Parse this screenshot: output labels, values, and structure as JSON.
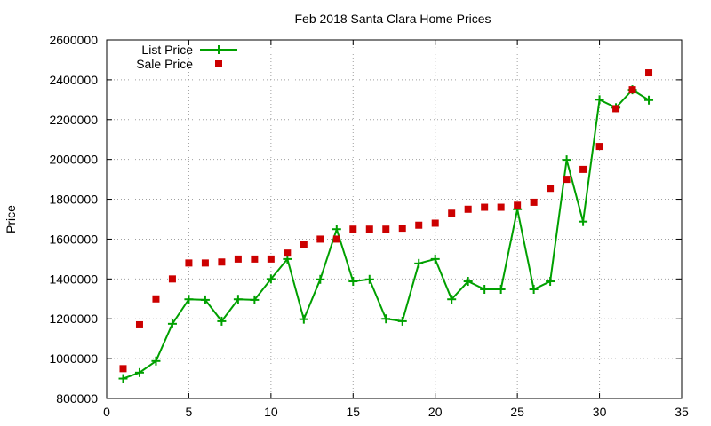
{
  "chart_data": {
    "type": "line",
    "title": "Feb 2018 Santa Clara Home Prices",
    "xlabel": "",
    "ylabel": "Price",
    "xlim": [
      0,
      35
    ],
    "ylim": [
      800000,
      2600000
    ],
    "xticks": [
      0,
      5,
      10,
      15,
      20,
      25,
      30,
      35
    ],
    "yticks": [
      800000,
      1000000,
      1200000,
      1400000,
      1600000,
      1800000,
      2000000,
      2200000,
      2400000,
      2600000
    ],
    "grid": true,
    "legend_position": "top-left",
    "x": [
      1,
      2,
      3,
      4,
      5,
      6,
      7,
      8,
      9,
      10,
      11,
      12,
      13,
      14,
      15,
      16,
      17,
      18,
      19,
      20,
      21,
      22,
      23,
      24,
      25,
      26,
      27,
      28,
      29,
      30,
      31,
      32,
      33
    ],
    "series": [
      {
        "name": "List Price",
        "style": "linespoints",
        "marker": "plus",
        "color": "#00a000",
        "values": [
          900000,
          930000,
          988000,
          1175000,
          1298000,
          1295000,
          1188000,
          1298000,
          1295000,
          1400000,
          1500000,
          1198000,
          1398000,
          1650000,
          1388000,
          1398000,
          1200000,
          1188000,
          1478000,
          1500000,
          1298000,
          1388000,
          1348000,
          1348000,
          1750000,
          1348000,
          1388000,
          1998000,
          1688000,
          2300000,
          2260000,
          2350000,
          2298000
        ]
      },
      {
        "name": "Sale Price",
        "style": "points",
        "marker": "square",
        "color": "#cc0000",
        "values": [
          950000,
          1170000,
          1300000,
          1400000,
          1480000,
          1480000,
          1485000,
          1500000,
          1500000,
          1500000,
          1530000,
          1575000,
          1600000,
          1600000,
          1650000,
          1650000,
          1650000,
          1655000,
          1670000,
          1680000,
          1730000,
          1750000,
          1760000,
          1760000,
          1770000,
          1785000,
          1855000,
          1900000,
          1950000,
          2065000,
          2255000,
          2350000,
          2435000
        ]
      }
    ]
  }
}
